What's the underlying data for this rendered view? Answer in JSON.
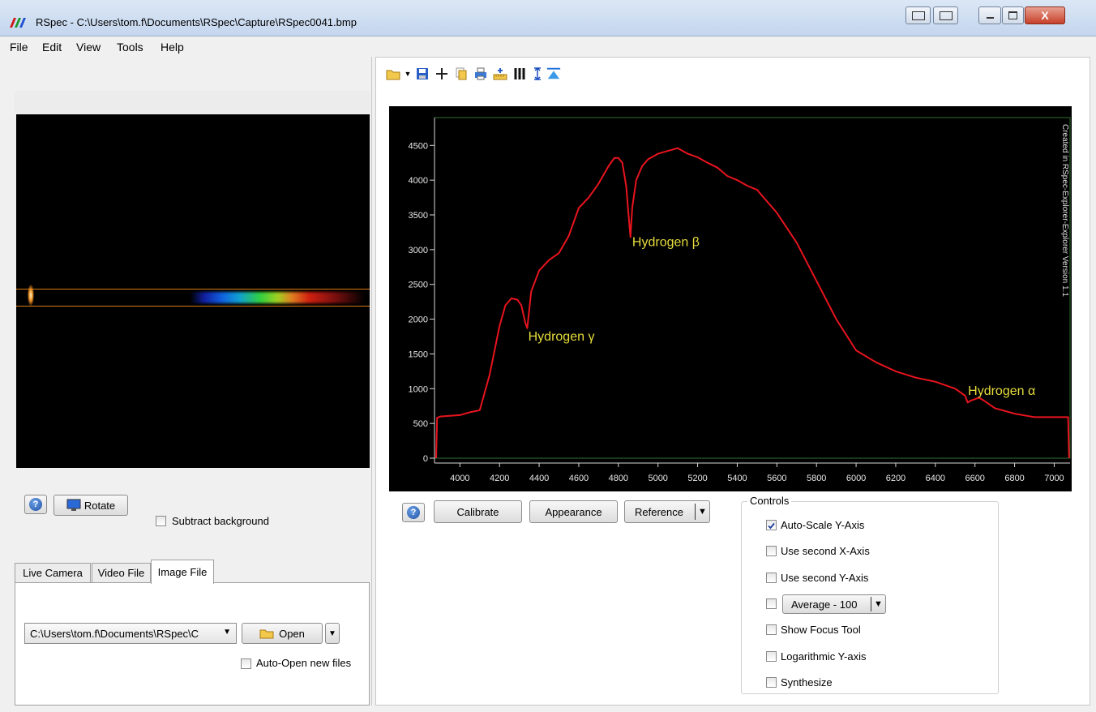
{
  "window": {
    "title": "RSpec - C:\\Users\\tom.f\\Documents\\RSpec\\Capture\\RSpec0041.bmp",
    "min_icon": "minimize-icon",
    "max_icon": "maximize-icon",
    "close_icon": "close-icon",
    "close_label": "X"
  },
  "menu": {
    "items": [
      "File",
      "Edit",
      "View",
      "Tools",
      "Help"
    ]
  },
  "left_toolbar": {
    "icons": [
      "open-folder-icon",
      "histogram-icon",
      "copy-windows-icon",
      "dotted-line-icon",
      "grid-icon",
      "help-icon",
      "zoom-icon",
      "settings-icon"
    ]
  },
  "right_toolbar": {
    "icons": [
      "open-folder-icon",
      "dropdown-arrow-icon",
      "save-icon",
      "crosshair-icon",
      "copy-icon",
      "print-icon",
      "calibration-icon",
      "bars-icon",
      "y-range-icon",
      "peak-icon"
    ]
  },
  "left_panel": {
    "help_label": "?",
    "rotate_label": "Rotate",
    "subtract_bg_label": "Subtract background",
    "subtract_bg_checked": false,
    "tabs": [
      "Live Camera",
      "Video File",
      "Image File"
    ],
    "active_tab": "Image File",
    "file_path_value": "C:\\Users\\tom.f\\Documents\\RSpec\\C",
    "open_label": "Open",
    "auto_open_label": "Auto-Open new files",
    "auto_open_checked": false
  },
  "chart_data": {
    "type": "line",
    "title": "",
    "xlabel": "",
    "ylabel": "",
    "xlim": [
      3880,
      7080
    ],
    "ylim": [
      0,
      4900
    ],
    "x_ticks": [
      4000,
      4200,
      4400,
      4600,
      4800,
      5000,
      5200,
      5400,
      5600,
      5800,
      6000,
      6200,
      6400,
      6600,
      6800,
      7000
    ],
    "y_ticks": [
      0,
      500,
      1000,
      1500,
      2000,
      2500,
      3000,
      3500,
      4000,
      4500
    ],
    "watermark": "Created in RSpec-Explorer-Explorer Version 1.1",
    "line_color": "#e8141e",
    "background": "#000000",
    "annotation_color": "#e6dc3c",
    "series": [
      {
        "x": [
          3880,
          3885,
          3900,
          3950,
          4000,
          4050,
          4100,
          4150,
          4200,
          4230,
          4260,
          4290,
          4310,
          4330,
          4340,
          4360,
          4400,
          4450,
          4500,
          4550,
          4600,
          4650,
          4700,
          4750,
          4780,
          4800,
          4820,
          4840,
          4850,
          4861,
          4870,
          4890,
          4920,
          4950,
          5000,
          5050,
          5100,
          5150,
          5200,
          5250,
          5300,
          5350,
          5400,
          5450,
          5500,
          5600,
          5700,
          5800,
          5900,
          6000,
          6100,
          6200,
          6300,
          6400,
          6500,
          6550,
          6563,
          6580,
          6620,
          6650,
          6700,
          6800,
          6900,
          7000,
          7070,
          7075
        ],
        "y": [
          0,
          580,
          600,
          610,
          620,
          660,
          690,
          1200,
          1900,
          2200,
          2300,
          2280,
          2200,
          1950,
          1870,
          2400,
          2700,
          2850,
          2950,
          3200,
          3600,
          3750,
          3950,
          4200,
          4320,
          4320,
          4250,
          3900,
          3550,
          3180,
          3600,
          4000,
          4200,
          4300,
          4380,
          4420,
          4460,
          4380,
          4330,
          4250,
          4180,
          4060,
          4000,
          3920,
          3860,
          3530,
          3100,
          2550,
          2000,
          1550,
          1380,
          1250,
          1160,
          1100,
          1000,
          900,
          800,
          830,
          870,
          820,
          720,
          640,
          590,
          590,
          590,
          0
        ]
      }
    ],
    "annotations": [
      {
        "text": "Hydrogen β",
        "x": 4870,
        "y": 3050
      },
      {
        "text": "Hydrogen γ",
        "x": 4345,
        "y": 1690
      },
      {
        "text": "Hydrogen α",
        "x": 6565,
        "y": 910
      }
    ]
  },
  "right_panel": {
    "help_label": "?",
    "calibrate_label": "Calibrate",
    "appearance_label": "Appearance",
    "reference_label": "Reference",
    "controls_title": "Controls",
    "controls": [
      {
        "label": "Auto-Scale Y-Axis",
        "checked": true
      },
      {
        "label": "Use second X-Axis",
        "checked": false
      },
      {
        "label": "Use second Y-Axis",
        "checked": false
      },
      {
        "label": "",
        "checked": false,
        "combo": "Average - 100"
      },
      {
        "label": "Show Focus Tool",
        "checked": false
      },
      {
        "label": "Logarithmic Y-axis",
        "checked": false
      },
      {
        "label": "Synthesize",
        "checked": false
      }
    ]
  }
}
